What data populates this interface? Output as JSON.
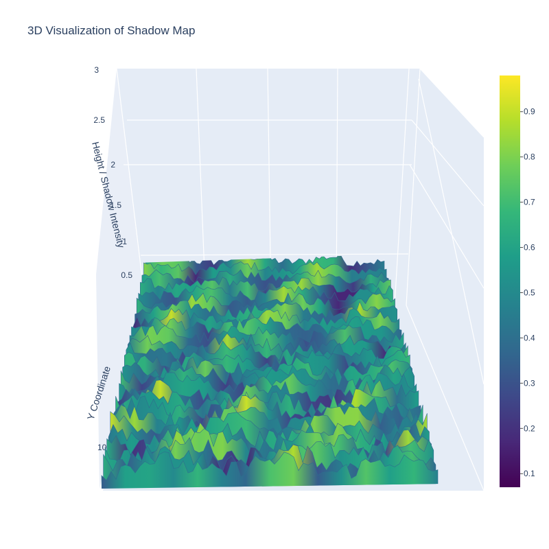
{
  "chart_data": {
    "type": "surface",
    "title": "3D Visualization of Shadow Map",
    "z_axis": {
      "title": "Height / Shadow Intensity",
      "ticks": [
        "0",
        "0.5",
        "1",
        "1.5",
        "2",
        "2.5",
        "3"
      ],
      "range": [
        0,
        3
      ]
    },
    "y_axis": {
      "title": "Y Coordinate",
      "ticks": [
        "10"
      ]
    },
    "colorscale": {
      "name": "Viridis",
      "range": [
        0.07,
        0.98
      ],
      "ticks": [
        "0.1",
        "0.2",
        "0.3",
        "0.4",
        "0.5",
        "0.6",
        "0.7",
        "0.8",
        "0.9"
      ],
      "stops": [
        "#440154",
        "#482878",
        "#3e4989",
        "#31688e",
        "#26828e",
        "#1f9e89",
        "#35b779",
        "#6ece58",
        "#b5de2b",
        "#fde725"
      ]
    },
    "surface_summary": {
      "value_min": 0.07,
      "value_max": 0.98,
      "description_values": "noisy field of peaks with a darker diagonal valley near the right-center"
    },
    "scene_colors": {
      "background": "#e5ecf6",
      "grid": "#ffffff",
      "text": "#2a3f5f"
    }
  }
}
